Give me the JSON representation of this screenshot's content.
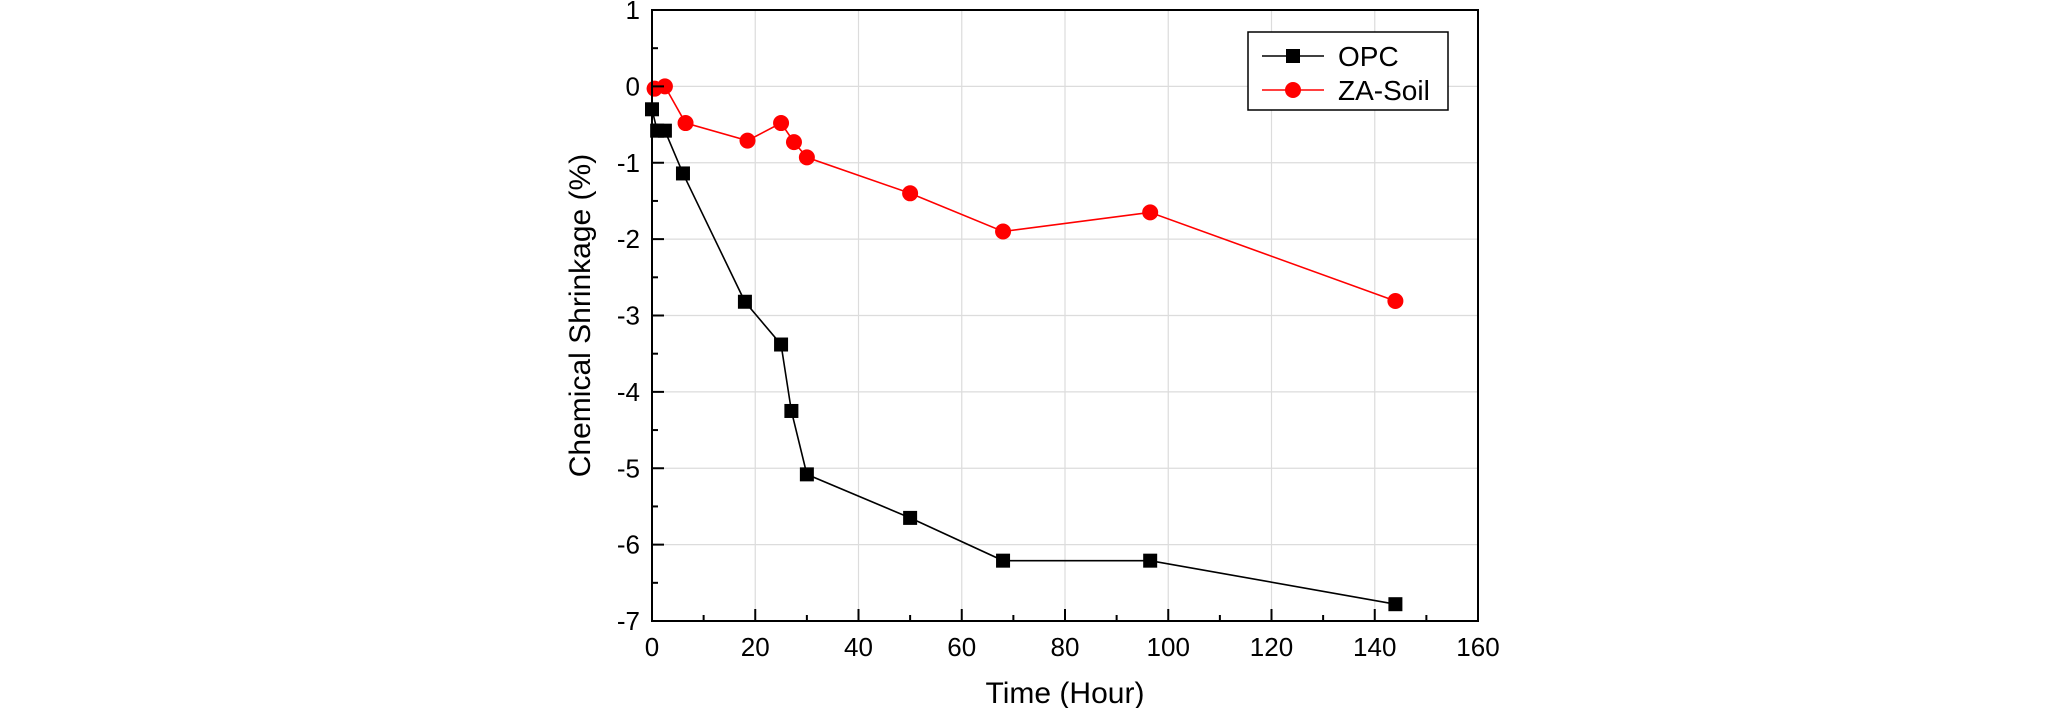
{
  "chart_data": {
    "type": "line",
    "title": "",
    "xlabel": "Time (Hour)",
    "ylabel": "Chemical Shrinkage (%)",
    "xlim": [
      0,
      160
    ],
    "ylim": [
      -7,
      1
    ],
    "xticks": [
      0,
      20,
      40,
      60,
      80,
      100,
      120,
      140,
      160
    ],
    "yticks": [
      1,
      0,
      -1,
      -2,
      -3,
      -4,
      -5,
      -6,
      -7
    ],
    "grid": true,
    "legend": "top-right",
    "series": [
      {
        "name": "OPC",
        "color": "#000000",
        "marker": "square",
        "x": [
          0,
          1,
          2.5,
          6,
          18,
          25,
          27,
          30,
          50,
          68,
          96.5,
          144
        ],
        "y": [
          -0.3,
          -0.58,
          -0.58,
          -1.14,
          -2.82,
          -3.38,
          -4.25,
          -5.08,
          -5.65,
          -6.21,
          -6.21,
          -6.78
        ]
      },
      {
        "name": "ZA-Soil",
        "color": "#ff0000",
        "marker": "circle",
        "x": [
          0.5,
          2.5,
          6.5,
          18.5,
          25,
          27.5,
          30,
          50,
          68,
          96.5,
          144
        ],
        "y": [
          -0.03,
          0,
          -0.48,
          -0.71,
          -0.48,
          -0.73,
          -0.93,
          -1.4,
          -1.9,
          -1.65,
          -2.81
        ]
      }
    ]
  }
}
